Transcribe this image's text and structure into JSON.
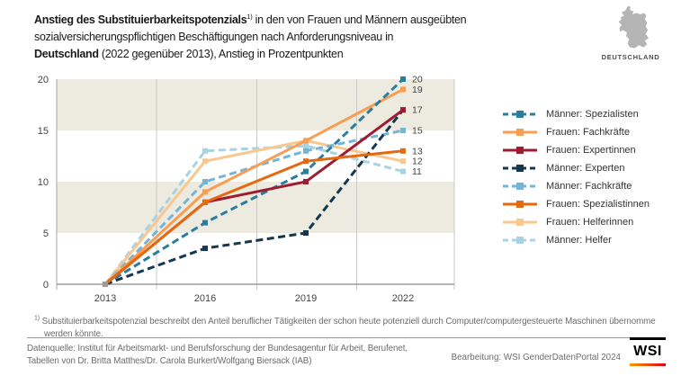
{
  "title": {
    "line1_bold": "Anstieg des Substituierbarkeitspotenzials",
    "line1_sup": "1)",
    "line1_rest": " in den von Frauen und Männern ausgeübten",
    "line2": "sozialversicherungspflichtigen Beschäftigungen nach Anforderungsniveau in",
    "line3_bold": "Deutschland",
    "line3_rest": " (2022 gegenüber 2013), Anstieg in Prozentpunkten"
  },
  "map": {
    "label": "DEUTSCHLAND",
    "color": "#b5b5b5"
  },
  "chart_data": {
    "type": "line",
    "x": [
      "2013",
      "2016",
      "2019",
      "2022"
    ],
    "ylim": [
      0,
      20
    ],
    "yticks": [
      0,
      5,
      10,
      15,
      20
    ],
    "bands": [
      [
        20,
        15
      ],
      [
        10,
        5
      ]
    ],
    "band_color": "#edeadf",
    "grid_on": true,
    "legend_position": "right",
    "series": [
      {
        "name": "Männer: Spezialisten",
        "values": [
          0,
          6,
          11,
          20
        ],
        "color": "#2a7d9c",
        "dashed": true,
        "end_label": "20"
      },
      {
        "name": "Frauen: Fachkräfte",
        "values": [
          0,
          9,
          14,
          19
        ],
        "color": "#f89d52",
        "dashed": false,
        "end_label": "19"
      },
      {
        "name": "Frauen: Expertinnen",
        "values": [
          0,
          8,
          10,
          17
        ],
        "color": "#9e1c31",
        "dashed": false,
        "end_label": "17"
      },
      {
        "name": "Männer: Experten",
        "values": [
          0,
          3.5,
          5,
          17
        ],
        "color": "#16374e",
        "dashed": true,
        "end_label": ""
      },
      {
        "name": "Männer: Fachkräfte",
        "values": [
          0,
          10,
          13,
          15
        ],
        "color": "#73b5d6",
        "dashed": true,
        "end_label": "15"
      },
      {
        "name": "Frauen: Spezialistinnen",
        "values": [
          0,
          8,
          12,
          13
        ],
        "color": "#e5690f",
        "dashed": false,
        "end_label": "13"
      },
      {
        "name": "Frauen: Helferinnen",
        "values": [
          0,
          12,
          14,
          12
        ],
        "color": "#fac78f",
        "dashed": false,
        "end_label": "12"
      },
      {
        "name": "Männer: Helfer",
        "values": [
          0,
          13,
          13.5,
          11
        ],
        "color": "#a9d3e4",
        "dashed": true,
        "end_label": "11"
      }
    ]
  },
  "footnote": {
    "sup": "1)",
    "text": " Substituierbarkeitspotenzial beschreibt den Anteil beruflicher Tätigkeiten der schon heute potenziell durch Computer/computergesteuerte Maschinen übernomme werden könnte."
  },
  "source": {
    "line1": "Datenquelle: Institut für Arbeitsmarkt- und Berufsforschung der Bundesagentur für Arbeit, Berufenet,",
    "line2": "Tabellen von Dr. Britta Matthes/Dr. Carola Burkert/Wolfgang Biersack (IAB)"
  },
  "bearbeitung": "Bearbeitung: WSI GenderDatenPortal 2024",
  "logo_text": "WSI"
}
